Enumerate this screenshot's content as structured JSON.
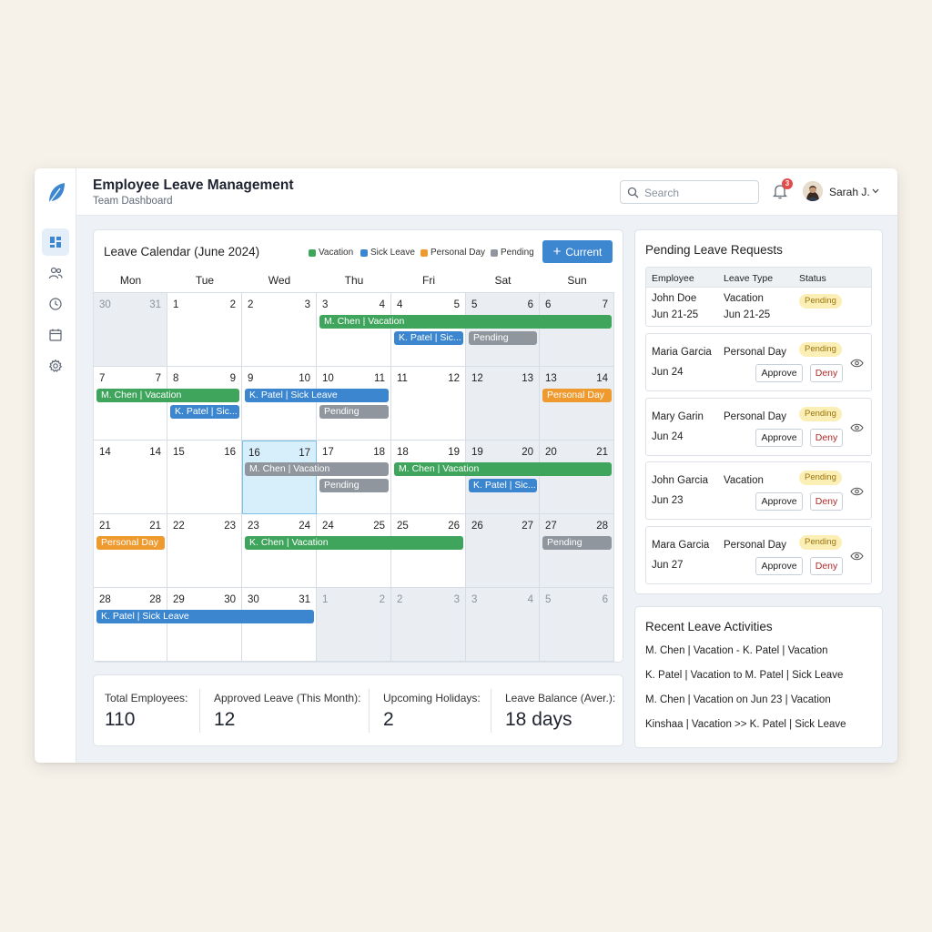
{
  "header": {
    "title": "Employee Leave Management",
    "subtitle": "Team Dashboard",
    "search_placeholder": "Search",
    "notification_count": "3",
    "user_name": "Sarah J."
  },
  "sidebar": {
    "items": [
      {
        "name": "dashboard-icon",
        "active": true
      },
      {
        "name": "users-icon",
        "active": false
      },
      {
        "name": "clock-icon",
        "active": false
      },
      {
        "name": "calendar-icon",
        "active": false
      },
      {
        "name": "gear-icon",
        "active": false
      }
    ]
  },
  "calendar": {
    "title": "Leave Calendar (June 2024)",
    "legend": [
      {
        "label": "Vacation",
        "color": "#3fa55c"
      },
      {
        "label": "Sick Leave",
        "color": "#3c86cf"
      },
      {
        "label": "Personal Day",
        "color": "#ef9a2f"
      },
      {
        "label": "Pending",
        "color": "#8f969e"
      }
    ],
    "current_button": "Current",
    "weekdays": [
      "Mon",
      "Tue",
      "Wed",
      "Thu",
      "Fri",
      "Sat",
      "Sun"
    ],
    "weeks": [
      [
        [
          "30",
          "31",
          true
        ],
        [
          "1",
          "2",
          false
        ],
        [
          "2",
          "3",
          false
        ],
        [
          "3",
          "4",
          false
        ],
        [
          "4",
          "5",
          false
        ],
        [
          "5",
          "6",
          false
        ],
        [
          "6",
          "7",
          false
        ]
      ],
      [
        [
          "7",
          "7",
          false
        ],
        [
          "8",
          "9",
          false
        ],
        [
          "9",
          "10",
          false
        ],
        [
          "10",
          "11",
          false
        ],
        [
          "11",
          "12",
          false
        ],
        [
          "12",
          "13",
          false
        ],
        [
          "13",
          "14",
          false
        ]
      ],
      [
        [
          "14",
          "14",
          false
        ],
        [
          "15",
          "16",
          false
        ],
        [
          "16",
          "17",
          false
        ],
        [
          "17",
          "18",
          false
        ],
        [
          "18",
          "19",
          false
        ],
        [
          "19",
          "20",
          false
        ],
        [
          "20",
          "21",
          false
        ]
      ],
      [
        [
          "21",
          "21",
          false
        ],
        [
          "22",
          "23",
          false
        ],
        [
          "23",
          "24",
          false
        ],
        [
          "24",
          "25",
          false
        ],
        [
          "25",
          "26",
          false
        ],
        [
          "26",
          "27",
          false
        ],
        [
          "27",
          "28",
          false
        ]
      ],
      [
        [
          "28",
          "28",
          false
        ],
        [
          "29",
          "30",
          false
        ],
        [
          "30",
          "31",
          false
        ],
        [
          "1",
          "2",
          true
        ],
        [
          "2",
          "3",
          true
        ],
        [
          "3",
          "4",
          true
        ],
        [
          "5",
          "6",
          true
        ]
      ]
    ],
    "events": [
      {
        "label": "M. Chen | Vacation",
        "type": "green",
        "week": 0,
        "start": 3,
        "end": 6,
        "lane": 0
      },
      {
        "label": "K. Patel | Sic...",
        "type": "blue",
        "week": 0,
        "start": 4,
        "end": 4,
        "lane": 1
      },
      {
        "label": "Pending",
        "type": "gray",
        "week": 0,
        "start": 5,
        "end": 5,
        "lane": 1
      },
      {
        "label": "M. Chen | Vacation",
        "type": "green",
        "week": 1,
        "start": 0,
        "end": 1,
        "lane": 0
      },
      {
        "label": "K. Patel | Sick Leave",
        "type": "blue",
        "week": 1,
        "start": 2,
        "end": 3,
        "lane": 0
      },
      {
        "label": "Personal Day",
        "type": "orange",
        "week": 1,
        "start": 6,
        "end": 6,
        "lane": 0
      },
      {
        "label": "K. Patel | Sic...",
        "type": "blue",
        "week": 1,
        "start": 1,
        "end": 1,
        "lane": 1
      },
      {
        "label": "Pending",
        "type": "gray",
        "week": 1,
        "start": 3,
        "end": 3,
        "lane": 1
      },
      {
        "label": "M. Chen | Vacation",
        "type": "gray",
        "week": 2,
        "start": 2,
        "end": 3,
        "lane": 0
      },
      {
        "label": "M. Chen | Vacation",
        "type": "green",
        "week": 2,
        "start": 4,
        "end": 6,
        "lane": 0
      },
      {
        "label": "Pending",
        "type": "gray",
        "week": 2,
        "start": 3,
        "end": 3,
        "lane": 1
      },
      {
        "label": "K. Patel | Sic...",
        "type": "blue",
        "week": 2,
        "start": 5,
        "end": 5,
        "lane": 1
      },
      {
        "label": "Personal Day",
        "type": "orange",
        "week": 3,
        "start": 0,
        "end": 0,
        "lane": 0
      },
      {
        "label": "K. Chen | Vacation",
        "type": "green",
        "week": 3,
        "start": 2,
        "end": 4,
        "lane": 0
      },
      {
        "label": "Pending",
        "type": "gray",
        "week": 3,
        "start": 6,
        "end": 6,
        "lane": 0
      },
      {
        "label": "K. Patel | Sick Leave",
        "type": "blue",
        "week": 4,
        "start": 0,
        "end": 2,
        "lane": 0
      }
    ]
  },
  "stats": [
    {
      "label": "Total Employees:",
      "value": "110"
    },
    {
      "label": "Approved Leave (This Month):",
      "value": "12"
    },
    {
      "label": "Upcoming Holidays:",
      "value": "2"
    },
    {
      "label": "Leave Balance (Aver.):",
      "value": "18 days"
    }
  ],
  "pending": {
    "title": "Pending Leave Requests",
    "columns": [
      "Employee",
      "Leave Type",
      "Status"
    ],
    "first_row": {
      "name": "John Doe",
      "date": "Jun 21-25",
      "type": "Vacation",
      "type_date": "Jun 21-25",
      "status": "Pending"
    },
    "requests": [
      {
        "name": "Maria Garcia",
        "date": "Jun 24",
        "type": "Personal Day",
        "status": "Pending",
        "approve": "Approve",
        "deny": "Deny"
      },
      {
        "name": "Mary Garin",
        "date": "Jun 24",
        "type": "Personal Day",
        "status": "Pending",
        "approve": "Approve",
        "deny": "Deny"
      },
      {
        "name": "John Garcia",
        "date": "Jun 23",
        "type": "Vacation",
        "status": "Pending",
        "approve": "Approve",
        "deny": "Deny"
      },
      {
        "name": "Mara Garcia",
        "date": "Jun 27",
        "type": "Personal Day",
        "status": "Pending",
        "approve": "Approve",
        "deny": "Deny"
      }
    ]
  },
  "activities": {
    "title": "Recent Leave Activities",
    "items": [
      "M. Chen | Vacation - K. Patel | Vacation",
      "K. Patel | Vacation to M. Patel | Sick Leave",
      "M. Chen | Vacation on Jun 23 | Vacation",
      "Kinshaa | Vacation >> K. Patel | Sick Leave"
    ]
  }
}
